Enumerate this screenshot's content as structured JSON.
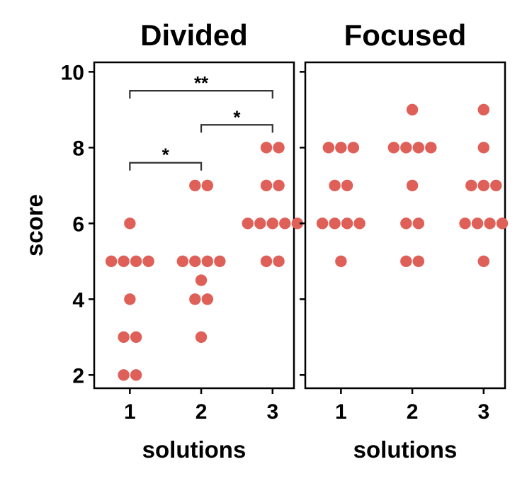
{
  "chart_data": {
    "type": "scatter",
    "style": "dot-strip-plot",
    "marker_color": "#de6058",
    "ylabel": "score",
    "ylim": [
      1.65,
      10.25
    ],
    "yticks": [
      2,
      4,
      6,
      8,
      10
    ],
    "xticks": [
      1,
      2,
      3
    ],
    "xlim": [
      0.5,
      3.3
    ],
    "panels": [
      {
        "title": "Divided",
        "xlabel": "solutions",
        "points": [
          {
            "x": 1,
            "values": [
              6,
              5,
              5,
              5,
              5,
              4,
              3,
              3,
              2,
              2
            ]
          },
          {
            "x": 2,
            "values": [
              7,
              7,
              5,
              5,
              5,
              5,
              4.5,
              4,
              4,
              3
            ]
          },
          {
            "x": 3,
            "values": [
              8,
              8,
              7,
              7,
              6,
              6,
              6,
              6,
              6,
              5,
              5
            ]
          }
        ],
        "significance": [
          {
            "from": 1,
            "to": 2,
            "y": 7.6,
            "label": "*"
          },
          {
            "from": 2,
            "to": 3,
            "y": 8.6,
            "label": "*"
          },
          {
            "from": 1,
            "to": 3,
            "y": 9.5,
            "label": "**"
          }
        ]
      },
      {
        "title": "Focused",
        "xlabel": "solutions",
        "points": [
          {
            "x": 1,
            "values": [
              8,
              8,
              8,
              7,
              7,
              6,
              6,
              6,
              6,
              5
            ]
          },
          {
            "x": 2,
            "values": [
              9,
              8,
              8,
              8,
              8,
              7,
              6,
              6,
              5,
              5
            ]
          },
          {
            "x": 3,
            "values": [
              9,
              8,
              7,
              7,
              7,
              6,
              6,
              6,
              6,
              5
            ]
          }
        ],
        "significance": []
      }
    ]
  }
}
